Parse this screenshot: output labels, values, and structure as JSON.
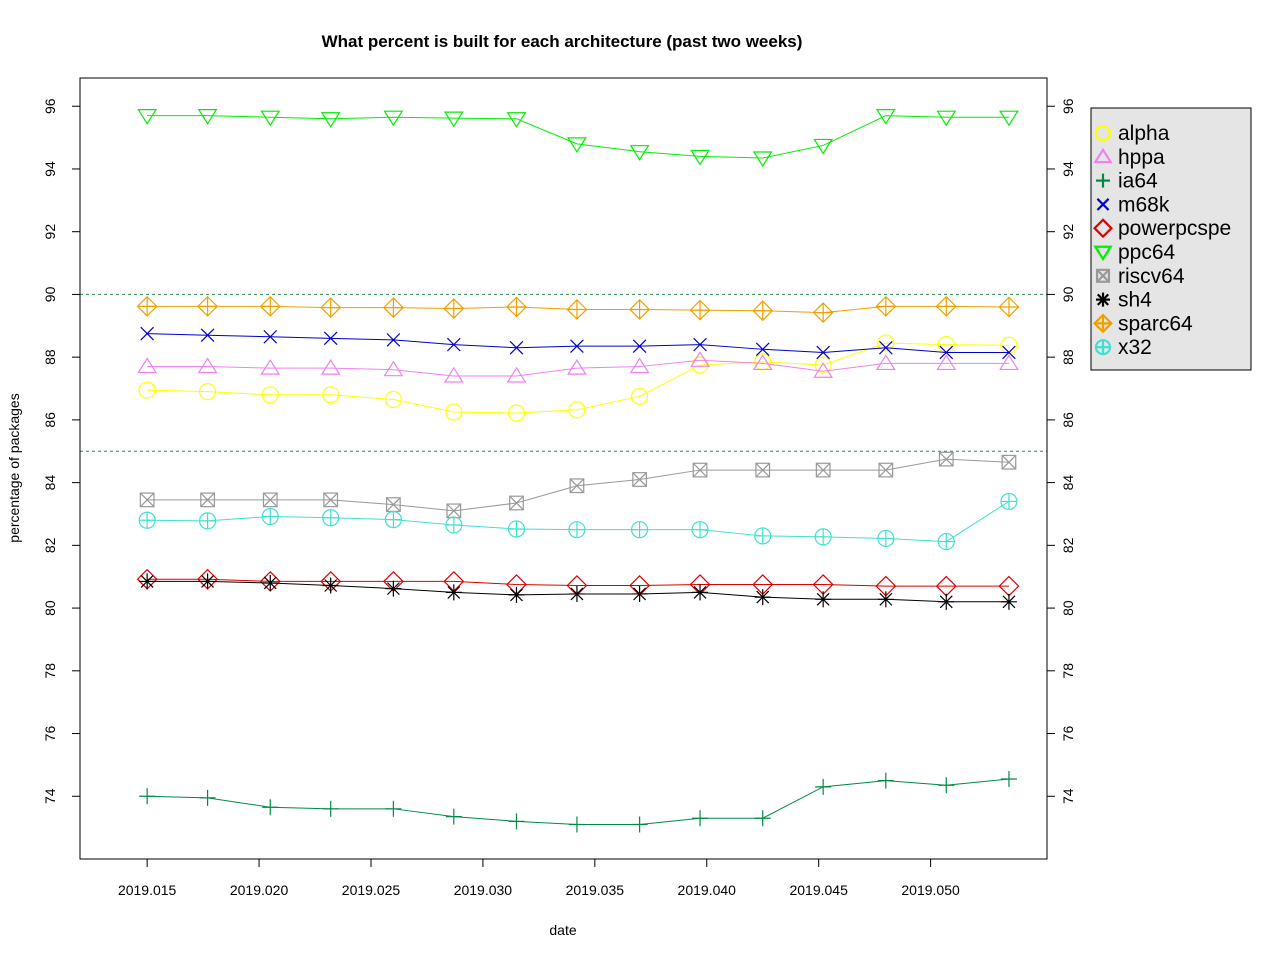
{
  "chart_data": {
    "type": "line",
    "title": "What percent is built for each architecture (past two weeks)",
    "xlabel": "date",
    "ylabel": "percentage of packages",
    "x": [
      2019.015,
      2019.0177,
      2019.0205,
      2019.0232,
      2019.026,
      2019.0287,
      2019.0315,
      2019.0342,
      2019.037,
      2019.0397,
      2019.0425,
      2019.0452,
      2019.048,
      2019.0507,
      2019.0535
    ],
    "xlim": [
      2019.012,
      2019.0552
    ],
    "ylim": [
      72.0,
      96.9
    ],
    "x_ticks": [
      "2019.015",
      "2019.020",
      "2019.025",
      "2019.030",
      "2019.035",
      "2019.040",
      "2019.045",
      "2019.050"
    ],
    "x_tick_values": [
      2019.015,
      2019.02,
      2019.025,
      2019.03,
      2019.035,
      2019.04,
      2019.045,
      2019.05
    ],
    "y_ticks": [
      "74",
      "76",
      "78",
      "80",
      "82",
      "84",
      "86",
      "88",
      "90",
      "92",
      "94",
      "96"
    ],
    "y_tick_values": [
      74,
      76,
      78,
      80,
      82,
      84,
      86,
      88,
      90,
      92,
      94,
      96
    ],
    "reference_lines": [
      85,
      90
    ],
    "reference_line_color": "#2e8b57",
    "legend_position": "top-right, outside plot",
    "grid": false,
    "series": [
      {
        "name": "alpha",
        "color": "#ffff00",
        "marker": "circle",
        "values": [
          86.95,
          86.9,
          86.8,
          86.8,
          86.65,
          86.25,
          86.22,
          86.32,
          86.75,
          87.75,
          87.85,
          87.75,
          88.45,
          88.4,
          88.38
        ]
      },
      {
        "name": "hppa",
        "color": "#ee82ee",
        "marker": "triangle-up",
        "values": [
          87.7,
          87.7,
          87.65,
          87.65,
          87.6,
          87.4,
          87.4,
          87.65,
          87.7,
          87.9,
          87.8,
          87.55,
          87.8,
          87.8,
          87.8
        ]
      },
      {
        "name": "ia64",
        "color": "#008b45",
        "marker": "plus",
        "values": [
          74.0,
          73.95,
          73.65,
          73.6,
          73.6,
          73.35,
          73.2,
          73.1,
          73.1,
          73.3,
          73.3,
          74.3,
          74.5,
          74.35,
          74.55
        ]
      },
      {
        "name": "m68k",
        "color": "#0000cd",
        "marker": "cross",
        "values": [
          88.75,
          88.7,
          88.65,
          88.6,
          88.55,
          88.4,
          88.3,
          88.35,
          88.35,
          88.4,
          88.25,
          88.15,
          88.3,
          88.15,
          88.15
        ]
      },
      {
        "name": "powerpcspe",
        "color": "#dd0000",
        "marker": "diamond",
        "values": [
          80.92,
          80.92,
          80.85,
          80.85,
          80.85,
          80.85,
          80.75,
          80.72,
          80.72,
          80.75,
          80.75,
          80.75,
          80.7,
          80.7,
          80.7
        ]
      },
      {
        "name": "ppc64",
        "color": "#00ee00",
        "marker": "triangle-down",
        "values": [
          95.7,
          95.7,
          95.65,
          95.6,
          95.65,
          95.62,
          95.6,
          94.8,
          94.55,
          94.4,
          94.35,
          94.75,
          95.7,
          95.65,
          95.65
        ]
      },
      {
        "name": "riscv64",
        "color": "#999999",
        "marker": "boxed-x",
        "values": [
          83.45,
          83.45,
          83.45,
          83.45,
          83.3,
          83.1,
          83.35,
          83.9,
          84.1,
          84.4,
          84.4,
          84.4,
          84.4,
          84.75,
          84.65
        ]
      },
      {
        "name": "sh4",
        "color": "#000000",
        "marker": "asterisk",
        "values": [
          80.85,
          80.85,
          80.8,
          80.72,
          80.62,
          80.5,
          80.42,
          80.45,
          80.45,
          80.5,
          80.35,
          80.28,
          80.28,
          80.2,
          80.2
        ]
      },
      {
        "name": "sparc64",
        "color": "#f0a000",
        "marker": "diamond-plus",
        "values": [
          89.62,
          89.62,
          89.62,
          89.58,
          89.58,
          89.55,
          89.6,
          89.52,
          89.52,
          89.5,
          89.48,
          89.42,
          89.62,
          89.62,
          89.6
        ]
      },
      {
        "name": "x32",
        "color": "#40e0d0",
        "marker": "circle-plus",
        "values": [
          82.8,
          82.78,
          82.92,
          82.88,
          82.82,
          82.65,
          82.52,
          82.5,
          82.5,
          82.5,
          82.3,
          82.27,
          82.22,
          82.12,
          83.4
        ]
      }
    ]
  }
}
